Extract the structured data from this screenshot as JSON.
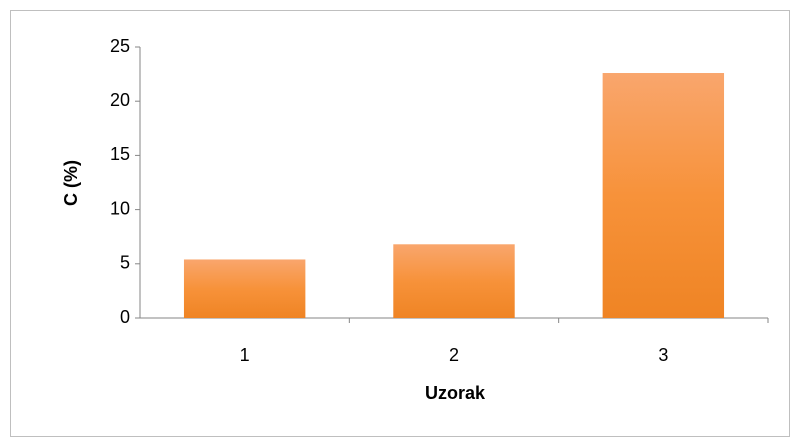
{
  "chart_data": {
    "type": "bar",
    "categories": [
      "1",
      "2",
      "3"
    ],
    "values": [
      5.4,
      6.8,
      22.6
    ],
    "color": "#f79646",
    "xlabel": "Uzorak",
    "ylabel": "C (%)",
    "ylim": [
      0,
      25
    ],
    "yticks": [
      0,
      5,
      10,
      15,
      20,
      25
    ],
    "grid": false
  }
}
